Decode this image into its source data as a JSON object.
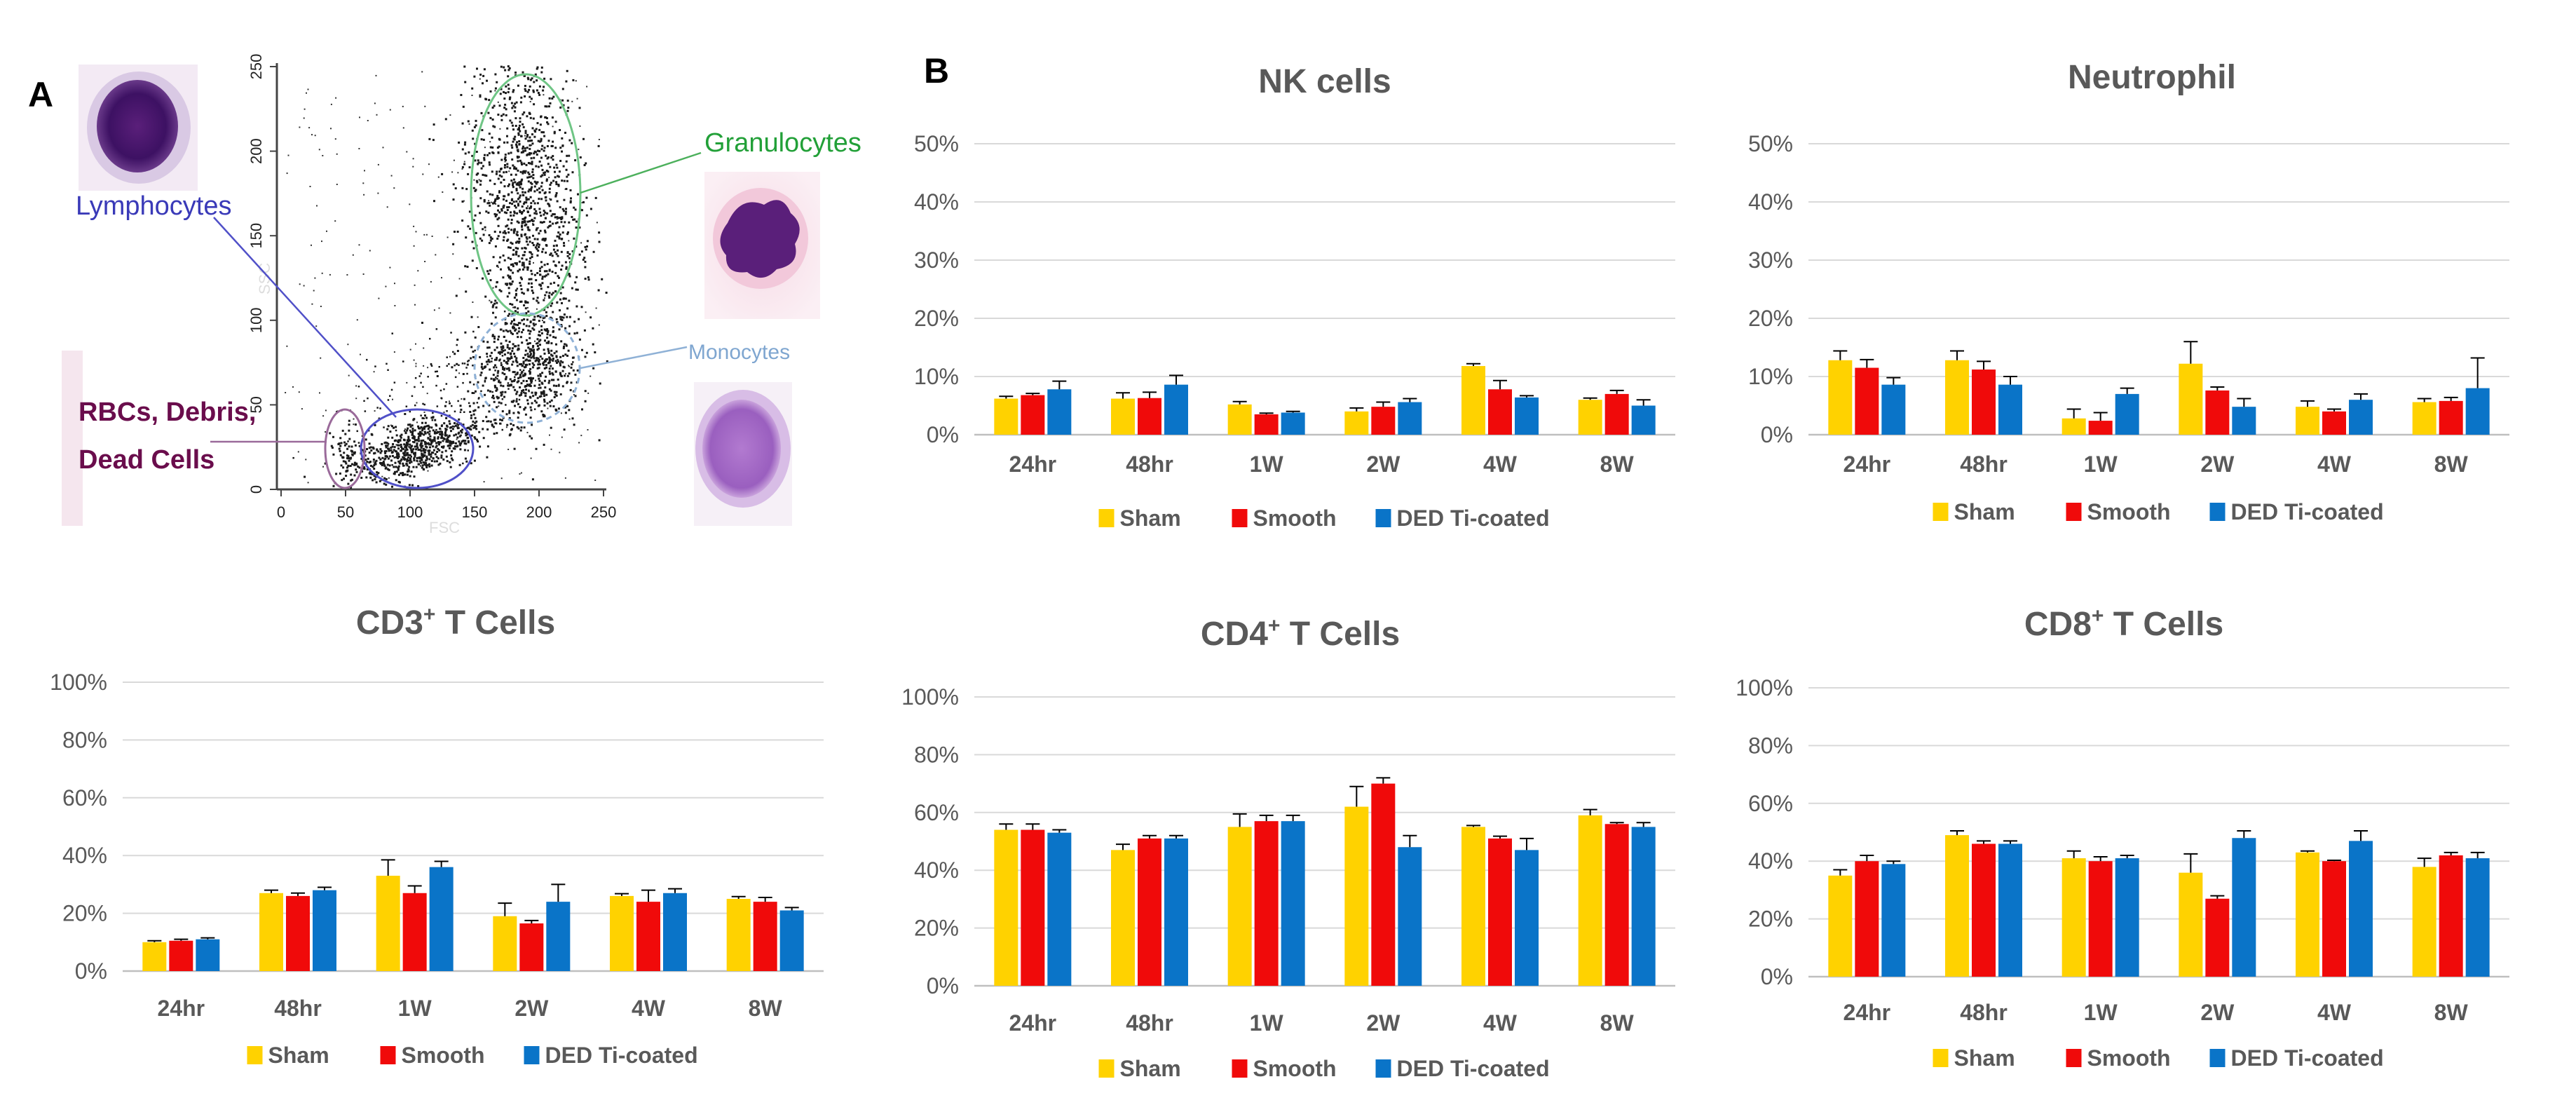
{
  "panel_a": {
    "label": "A",
    "flow": {
      "xticks": [
        "0",
        "50",
        "100",
        "150",
        "200",
        "250"
      ],
      "yticks": [
        "0",
        "50",
        "100",
        "150",
        "200",
        "250"
      ],
      "xlabel": "FSC",
      "ylabel": "SSC",
      "populations": {
        "lymphocytes": "Lymphocytes",
        "granulocytes": "Granulocytes",
        "monocytes": "Monocytes",
        "rbc_line1": "RBCs, Debris,",
        "rbc_line2": "Dead Cells"
      }
    }
  },
  "panel_b": {
    "label": "B"
  },
  "colors": {
    "sham": "#FFD200",
    "smooth": "#F00A0A",
    "ded": "#0A74C8",
    "grid": "#D9D9D9",
    "axis": "#BFBFBF",
    "text": "#595959"
  },
  "chart_data": [
    {
      "id": "nk",
      "type": "bar",
      "title": "NK cells",
      "title_sup": "",
      "title_rest": "",
      "categories": [
        "24hr",
        "48hr",
        "1W",
        "2W",
        "4W",
        "8W"
      ],
      "yticks": [
        "0%",
        "10%",
        "20%",
        "30%",
        "40%",
        "50%"
      ],
      "ylim": [
        0,
        50
      ],
      "series": [
        {
          "name": "Sham",
          "values": [
            6.2,
            6.2,
            5.2,
            4.0,
            11.8,
            6.0
          ],
          "errors": [
            0.4,
            1.0,
            0.5,
            0.6,
            0.4,
            0.3
          ]
        },
        {
          "name": "Smooth",
          "values": [
            6.8,
            6.3,
            3.5,
            4.8,
            7.8,
            7.0
          ],
          "errors": [
            0.3,
            1.0,
            0.2,
            0.8,
            1.5,
            0.6
          ]
        },
        {
          "name": "DED Ti-coated",
          "values": [
            7.8,
            8.6,
            3.8,
            5.6,
            6.4,
            5.0
          ],
          "errors": [
            1.4,
            1.6,
            0.2,
            0.6,
            0.3,
            1.0
          ]
        }
      ],
      "legend": [
        "Sham",
        "Smooth",
        "DED Ti-coated"
      ]
    },
    {
      "id": "neut",
      "type": "bar",
      "title": "Neutrophil",
      "title_sup": "",
      "title_rest": "",
      "categories": [
        "24hr",
        "48hr",
        "1W",
        "2W",
        "4W",
        "8W"
      ],
      "yticks": [
        "0%",
        "10%",
        "20%",
        "30%",
        "40%",
        "50%"
      ],
      "ylim": [
        0,
        50
      ],
      "series": [
        {
          "name": "Sham",
          "values": [
            12.8,
            12.8,
            2.8,
            12.2,
            4.8,
            5.6
          ],
          "errors": [
            1.6,
            1.6,
            1.6,
            3.8,
            1.0,
            0.6
          ]
        },
        {
          "name": "Smooth",
          "values": [
            11.5,
            11.2,
            2.4,
            7.6,
            4.0,
            5.8
          ],
          "errors": [
            1.4,
            1.4,
            1.4,
            0.6,
            0.4,
            0.6
          ]
        },
        {
          "name": "DED Ti-coated",
          "values": [
            8.6,
            8.6,
            7.0,
            4.8,
            6.0,
            8.0
          ],
          "errors": [
            1.2,
            1.4,
            1.0,
            1.4,
            1.0,
            5.2
          ]
        }
      ],
      "legend": [
        "Sham",
        "Smooth",
        "DED Ti-coated"
      ]
    },
    {
      "id": "cd3",
      "type": "bar",
      "title": "CD3",
      "title_sup": "+",
      "title_rest": " T Cells",
      "categories": [
        "24hr",
        "48hr",
        "1W",
        "2W",
        "4W",
        "8W"
      ],
      "yticks": [
        "0%",
        "20%",
        "40%",
        "60%",
        "80%",
        "100%"
      ],
      "ylim": [
        0,
        100
      ],
      "series": [
        {
          "name": "Sham",
          "values": [
            10,
            27,
            33,
            19,
            26,
            25
          ],
          "errors": [
            0.5,
            1.0,
            5.5,
            4.5,
            0.8,
            0.8
          ]
        },
        {
          "name": "Smooth",
          "values": [
            10.5,
            26,
            27,
            16.5,
            24,
            24
          ],
          "errors": [
            0.5,
            1.0,
            2.5,
            1.0,
            4.0,
            1.5
          ]
        },
        {
          "name": "DED Ti-coated",
          "values": [
            11,
            28,
            36,
            24,
            27,
            21
          ],
          "errors": [
            0.5,
            1.0,
            2.0,
            6.0,
            1.5,
            1.0
          ]
        }
      ],
      "legend": [
        "Sham",
        "Smooth",
        "DED Ti-coated"
      ]
    },
    {
      "id": "cd4",
      "type": "bar",
      "title": "CD4",
      "title_sup": "+",
      "title_rest": " T Cells",
      "categories": [
        "24hr",
        "48hr",
        "1W",
        "2W",
        "4W",
        "8W"
      ],
      "yticks": [
        "0%",
        "20%",
        "40%",
        "60%",
        "80%",
        "100%"
      ],
      "ylim": [
        0,
        100
      ],
      "series": [
        {
          "name": "Sham",
          "values": [
            54,
            47,
            55,
            62,
            55,
            59
          ],
          "errors": [
            2.0,
            2.0,
            4.5,
            7.0,
            0.5,
            2.0
          ]
        },
        {
          "name": "Smooth",
          "values": [
            54,
            51,
            57,
            70,
            51,
            56
          ],
          "errors": [
            2.0,
            1.0,
            2.0,
            2.0,
            0.8,
            0.5
          ]
        },
        {
          "name": "DED Ti-coated",
          "values": [
            53,
            51,
            57,
            48,
            47,
            55
          ],
          "errors": [
            1.0,
            1.0,
            2.0,
            4.0,
            4.0,
            1.5
          ]
        }
      ],
      "legend": [
        "Sham",
        "Smooth",
        "DED Ti-coated"
      ]
    },
    {
      "id": "cd8",
      "type": "bar",
      "title": "CD8",
      "title_sup": "+",
      "title_rest": " T Cells",
      "categories": [
        "24hr",
        "48hr",
        "1W",
        "2W",
        "4W",
        "8W"
      ],
      "yticks": [
        "0%",
        "20%",
        "40%",
        "60%",
        "80%",
        "100%"
      ],
      "ylim": [
        0,
        100
      ],
      "series": [
        {
          "name": "Sham",
          "values": [
            35,
            49,
            41,
            36,
            43,
            38
          ],
          "errors": [
            2.0,
            1.5,
            2.5,
            6.5,
            0.5,
            3.0
          ]
        },
        {
          "name": "Smooth",
          "values": [
            40,
            46,
            40,
            27,
            40,
            42
          ],
          "errors": [
            2.0,
            1.0,
            1.5,
            1.0,
            0.3,
            1.0
          ]
        },
        {
          "name": "DED Ti-coated",
          "values": [
            39,
            46,
            41,
            48,
            47,
            41
          ],
          "errors": [
            1.0,
            1.0,
            1.0,
            2.5,
            3.5,
            2.0
          ]
        }
      ],
      "legend": [
        "Sham",
        "Smooth",
        "DED Ti-coated"
      ]
    }
  ]
}
